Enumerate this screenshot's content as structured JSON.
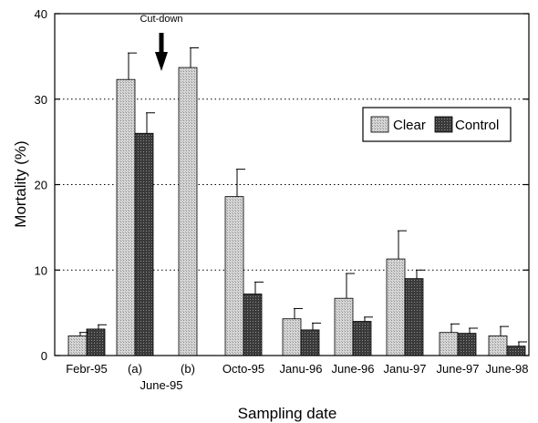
{
  "chart_data": {
    "type": "bar",
    "title": "",
    "xlabel": "Sampling date",
    "ylabel": "Mortality (%)",
    "ylim": [
      0,
      40
    ],
    "yticks": [
      "0",
      "10",
      "20",
      "30",
      "40"
    ],
    "grid": "horizontal dotted at 10, 20, 30",
    "legend_position": "top-right",
    "categories": [
      "Febr-95",
      "(a)",
      "(b)",
      "Octo-95",
      "Janu-96",
      "June-96",
      "Janu-97",
      "June-97",
      "June-98"
    ],
    "group_label": {
      "text": "June-95",
      "spans": [
        "(a)",
        "(b)"
      ]
    },
    "annotation": {
      "text": "Cut-down",
      "between": [
        "(a)",
        "(b)"
      ],
      "marker": "down-arrow"
    },
    "series": [
      {
        "name": "Clear",
        "color": "#c8c8c8",
        "values": [
          2.3,
          32.3,
          33.7,
          18.6,
          4.3,
          6.7,
          11.3,
          2.7,
          2.3
        ],
        "errors": [
          0.4,
          3.1,
          2.3,
          3.2,
          1.2,
          2.9,
          3.3,
          1.0,
          1.1
        ]
      },
      {
        "name": "Control",
        "color": "#444444",
        "values": [
          3.1,
          26.0,
          null,
          7.2,
          3.0,
          4.0,
          9.0,
          2.6,
          1.1
        ],
        "errors": [
          0.5,
          2.4,
          null,
          1.4,
          0.8,
          0.5,
          1.0,
          0.6,
          0.5
        ]
      }
    ]
  }
}
